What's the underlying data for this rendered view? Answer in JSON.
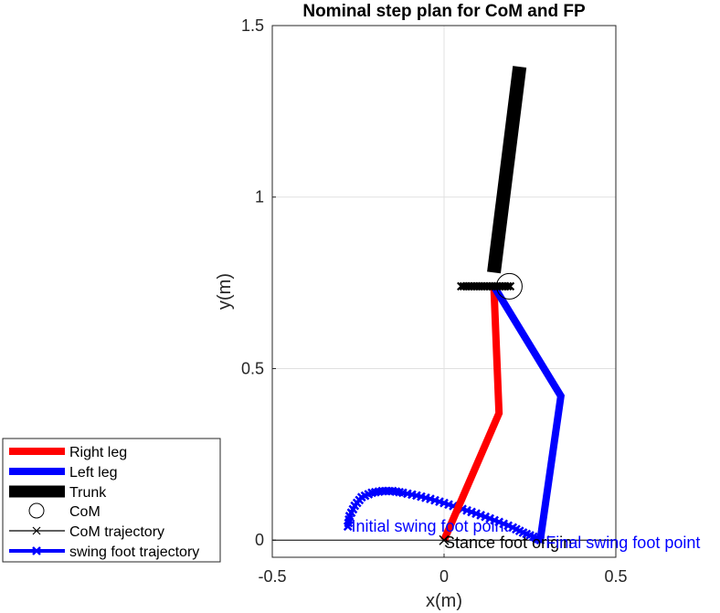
{
  "chart_data": {
    "type": "line",
    "title": "Nominal step plan for CoM and FP",
    "xlabel": "x(m)",
    "ylabel": "y(m)",
    "xlim": [
      -0.5,
      0.5
    ],
    "ylim": [
      -0.05,
      1.5
    ],
    "x_ticks": [
      "-0.5",
      "0",
      "0.5"
    ],
    "y_ticks": [
      "0",
      "0.5",
      "1",
      "1.5"
    ],
    "grid": true,
    "legend_position": "bottom-left, outside axes",
    "colors": {
      "right_leg": "#ff0000",
      "left_leg": "#0000ff",
      "trunk": "#000000",
      "swing": "#0000ff"
    },
    "series": [
      {
        "name": "Right leg",
        "x": [
          0.0,
          0.16,
          0.145
        ],
        "y": [
          0.0,
          0.37,
          0.74
        ]
      },
      {
        "name": "Left leg",
        "x": [
          0.145,
          0.34,
          0.28
        ],
        "y": [
          0.74,
          0.42,
          0.0
        ]
      },
      {
        "name": "Trunk",
        "x": [
          0.145,
          0.22
        ],
        "y": [
          0.78,
          1.38
        ]
      },
      {
        "name": "CoM",
        "x": [
          0.19
        ],
        "y": [
          0.74
        ]
      },
      {
        "name": "CoM trajectory",
        "x": [
          0.05,
          0.065,
          0.08,
          0.095,
          0.11,
          0.125,
          0.14,
          0.155,
          0.17,
          0.185
        ],
        "y": [
          0.74,
          0.74,
          0.74,
          0.74,
          0.74,
          0.74,
          0.74,
          0.74,
          0.74,
          0.74
        ]
      },
      {
        "name": "swing foot trajectory",
        "x": [
          -0.28,
          -0.275,
          -0.26,
          -0.24,
          -0.21,
          -0.18,
          -0.15,
          -0.12,
          -0.08,
          -0.04,
          0.0,
          0.04,
          0.08,
          0.12,
          0.16,
          0.2,
          0.23,
          0.26,
          0.28
        ],
        "y": [
          0.04,
          0.07,
          0.1,
          0.125,
          0.138,
          0.143,
          0.143,
          0.138,
          0.13,
          0.12,
          0.108,
          0.095,
          0.082,
          0.068,
          0.053,
          0.037,
          0.022,
          0.01,
          0.0
        ]
      }
    ],
    "annotations": [
      {
        "text": "Initial swing foot point",
        "x": -0.27,
        "y": 0.04,
        "color": "#0000ff"
      },
      {
        "text": "Stance foot origin",
        "x": 0.0,
        "y": 0.0,
        "color": "#000000"
      },
      {
        "text": "Final swing foot point",
        "x": 0.28,
        "y": 0.0,
        "color": "#0000ff"
      }
    ]
  }
}
